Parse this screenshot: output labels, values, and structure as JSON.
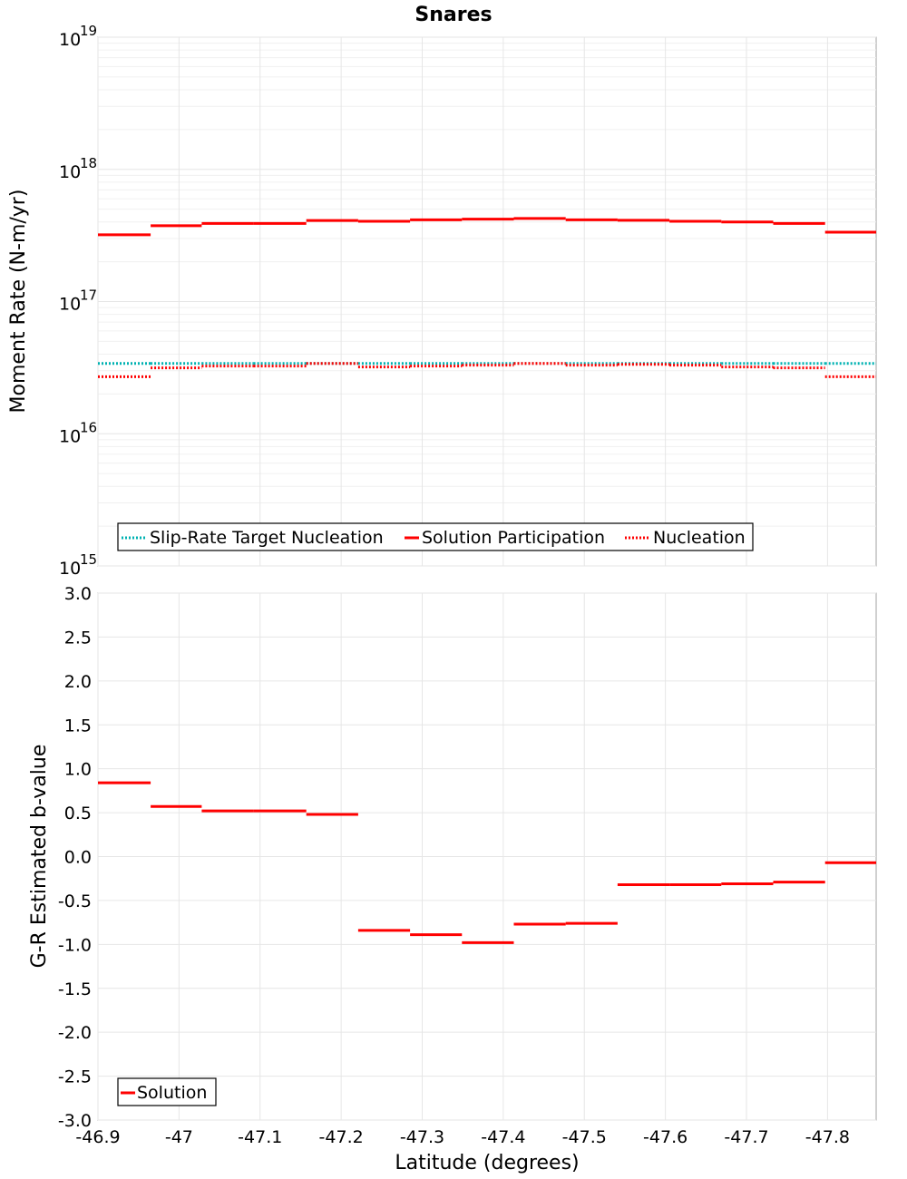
{
  "chart_data": [
    {
      "type": "line",
      "title": "Snares",
      "ylabel": "Moment Rate (N-m/yr)",
      "yscale": "log",
      "ylim_exponents": [
        15,
        19
      ],
      "ytick_base": "10",
      "ytick_exponents": [
        "19",
        "18",
        "17",
        "16",
        "15"
      ],
      "xlim": [
        -46.9,
        -47.86
      ],
      "x_edges": [
        -46.9,
        -46.965,
        -47.028,
        -47.092,
        -47.157,
        -47.221,
        -47.285,
        -47.349,
        -47.413,
        -47.477,
        -47.541,
        -47.605,
        -47.669,
        -47.733,
        -47.797,
        -47.86
      ],
      "legend": [
        "Slip-Rate Target Nucleation",
        "Solution Participation",
        "Nucleation"
      ],
      "legend_position": "bottom-left",
      "series": [
        {
          "name": "Slip-Rate Target Nucleation",
          "color": "#00b2b2",
          "style": "dotted",
          "values": [
            3.4e+16,
            3.4e+16,
            3.4e+16,
            3.4e+16,
            3.4e+16,
            3.4e+16,
            3.4e+16,
            3.4e+16,
            3.4e+16,
            3.4e+16,
            3.4e+16,
            3.4e+16,
            3.4e+16,
            3.4e+16,
            3.4e+16
          ]
        },
        {
          "name": "Solution Participation",
          "color": "#ff0000",
          "style": "solid",
          "values": [
            3.2e+17,
            3.75e+17,
            3.9e+17,
            3.9e+17,
            4.1e+17,
            4.05e+17,
            4.15e+17,
            4.2e+17,
            4.25e+17,
            4.15e+17,
            4.12e+17,
            4.05e+17,
            4e+17,
            3.9e+17,
            3.35e+17
          ]
        },
        {
          "name": "Nucleation",
          "color": "#ff0000",
          "style": "dotted",
          "values": [
            2.7e+16,
            3.15e+16,
            3.25e+16,
            3.25e+16,
            3.4e+16,
            3.2e+16,
            3.25e+16,
            3.3e+16,
            3.4e+16,
            3.3e+16,
            3.35e+16,
            3.3e+16,
            3.2e+16,
            3.15e+16,
            2.7e+16
          ]
        }
      ]
    },
    {
      "type": "line",
      "ylabel": "G-R Estimated b-value",
      "xlabel": "Latitude (degrees)",
      "ylim": [
        -3.0,
        3.0
      ],
      "yticks": [
        "3.0",
        "2.5",
        "2.0",
        "1.5",
        "1.0",
        "0.5",
        "0.0",
        "-0.5",
        "-1.0",
        "-1.5",
        "-2.0",
        "-2.5",
        "-3.0"
      ],
      "xlim": [
        -46.9,
        -47.86
      ],
      "xticks": [
        "-46.9",
        "-47",
        "-47.1",
        "-47.2",
        "-47.3",
        "-47.4",
        "-47.5",
        "-47.6",
        "-47.7",
        "-47.8"
      ],
      "x_edges": [
        -46.9,
        -46.965,
        -47.028,
        -47.092,
        -47.157,
        -47.221,
        -47.285,
        -47.349,
        -47.413,
        -47.477,
        -47.541,
        -47.605,
        -47.669,
        -47.733,
        -47.797,
        -47.86
      ],
      "legend": [
        "Solution"
      ],
      "legend_position": "bottom-left",
      "series": [
        {
          "name": "Solution",
          "color": "#ff0000",
          "style": "solid",
          "values": [
            0.84,
            0.57,
            0.52,
            0.52,
            0.48,
            -0.84,
            -0.89,
            -0.98,
            -0.77,
            -0.76,
            -0.32,
            -0.32,
            -0.31,
            -0.29,
            -0.07
          ]
        }
      ]
    }
  ]
}
